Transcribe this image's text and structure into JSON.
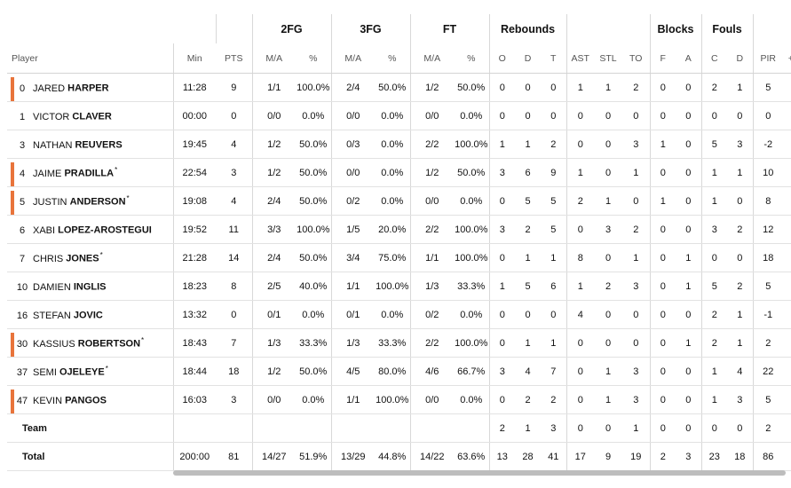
{
  "groups": {
    "fg2": "2FG",
    "fg3": "3FG",
    "ft": "FT",
    "reb": "Rebounds",
    "blk": "Blocks",
    "fouls": "Fouls"
  },
  "columns": {
    "player": "Player",
    "min": "Min",
    "pts": "PTS",
    "fg2_ma": "M/A",
    "fg2_pct": "%",
    "fg3_ma": "M/A",
    "fg3_pct": "%",
    "ft_ma": "M/A",
    "ft_pct": "%",
    "o": "O",
    "d": "D",
    "t": "T",
    "ast": "AST",
    "stl": "STL",
    "to": "TO",
    "bf": "F",
    "ba": "A",
    "fc": "C",
    "fd": "D",
    "pir": "PIR",
    "pm": "+/-"
  },
  "accent_color": "#e8743b",
  "players": [
    {
      "num": "0",
      "first": "JARED",
      "last": "HARPER",
      "star": "",
      "bar": true,
      "min": "11:28",
      "pts": "9",
      "fg2_ma": "1/1",
      "fg2_pct": "100.0%",
      "fg3_ma": "2/4",
      "fg3_pct": "50.0%",
      "ft_ma": "1/2",
      "ft_pct": "50.0%",
      "o": "0",
      "d": "0",
      "t": "0",
      "ast": "1",
      "stl": "1",
      "to": "2",
      "bf": "0",
      "ba": "0",
      "fc": "2",
      "fd": "1",
      "pir": "5"
    },
    {
      "num": "1",
      "first": "VICTOR",
      "last": "CLAVER",
      "star": "",
      "bar": false,
      "min": "00:00",
      "pts": "0",
      "fg2_ma": "0/0",
      "fg2_pct": "0.0%",
      "fg3_ma": "0/0",
      "fg3_pct": "0.0%",
      "ft_ma": "0/0",
      "ft_pct": "0.0%",
      "o": "0",
      "d": "0",
      "t": "0",
      "ast": "0",
      "stl": "0",
      "to": "0",
      "bf": "0",
      "ba": "0",
      "fc": "0",
      "fd": "0",
      "pir": "0"
    },
    {
      "num": "3",
      "first": "NATHAN",
      "last": "REUVERS",
      "star": "",
      "bar": false,
      "min": "19:45",
      "pts": "4",
      "fg2_ma": "1/2",
      "fg2_pct": "50.0%",
      "fg3_ma": "0/3",
      "fg3_pct": "0.0%",
      "ft_ma": "2/2",
      "ft_pct": "100.0%",
      "o": "1",
      "d": "1",
      "t": "2",
      "ast": "0",
      "stl": "0",
      "to": "3",
      "bf": "1",
      "ba": "0",
      "fc": "5",
      "fd": "3",
      "pir": "-2"
    },
    {
      "num": "4",
      "first": "JAIME",
      "last": "PRADILLA",
      "star": "*",
      "bar": true,
      "min": "22:54",
      "pts": "3",
      "fg2_ma": "1/2",
      "fg2_pct": "50.0%",
      "fg3_ma": "0/0",
      "fg3_pct": "0.0%",
      "ft_ma": "1/2",
      "ft_pct": "50.0%",
      "o": "3",
      "d": "6",
      "t": "9",
      "ast": "1",
      "stl": "0",
      "to": "1",
      "bf": "0",
      "ba": "0",
      "fc": "1",
      "fd": "1",
      "pir": "10"
    },
    {
      "num": "5",
      "first": "JUSTIN",
      "last": "ANDERSON",
      "star": "*",
      "bar": true,
      "min": "19:08",
      "pts": "4",
      "fg2_ma": "2/4",
      "fg2_pct": "50.0%",
      "fg3_ma": "0/2",
      "fg3_pct": "0.0%",
      "ft_ma": "0/0",
      "ft_pct": "0.0%",
      "o": "0",
      "d": "5",
      "t": "5",
      "ast": "2",
      "stl": "1",
      "to": "0",
      "bf": "1",
      "ba": "0",
      "fc": "1",
      "fd": "0",
      "pir": "8"
    },
    {
      "num": "6",
      "first": "XABI",
      "last": "LOPEZ-AROSTEGUI",
      "star": "",
      "bar": false,
      "min": "19:52",
      "pts": "11",
      "fg2_ma": "3/3",
      "fg2_pct": "100.0%",
      "fg3_ma": "1/5",
      "fg3_pct": "20.0%",
      "ft_ma": "2/2",
      "ft_pct": "100.0%",
      "o": "3",
      "d": "2",
      "t": "5",
      "ast": "0",
      "stl": "3",
      "to": "2",
      "bf": "0",
      "ba": "0",
      "fc": "3",
      "fd": "2",
      "pir": "12"
    },
    {
      "num": "7",
      "first": "CHRIS",
      "last": "JONES",
      "star": "*",
      "bar": false,
      "min": "21:28",
      "pts": "14",
      "fg2_ma": "2/4",
      "fg2_pct": "50.0%",
      "fg3_ma": "3/4",
      "fg3_pct": "75.0%",
      "ft_ma": "1/1",
      "ft_pct": "100.0%",
      "o": "0",
      "d": "1",
      "t": "1",
      "ast": "8",
      "stl": "0",
      "to": "1",
      "bf": "0",
      "ba": "1",
      "fc": "0",
      "fd": "0",
      "pir": "18"
    },
    {
      "num": "10",
      "first": "DAMIEN",
      "last": "INGLIS",
      "star": "",
      "bar": false,
      "min": "18:23",
      "pts": "8",
      "fg2_ma": "2/5",
      "fg2_pct": "40.0%",
      "fg3_ma": "1/1",
      "fg3_pct": "100.0%",
      "ft_ma": "1/3",
      "ft_pct": "33.3%",
      "o": "1",
      "d": "5",
      "t": "6",
      "ast": "1",
      "stl": "2",
      "to": "3",
      "bf": "0",
      "ba": "1",
      "fc": "5",
      "fd": "2",
      "pir": "5"
    },
    {
      "num": "16",
      "first": "STEFAN",
      "last": "JOVIC",
      "star": "",
      "bar": false,
      "min": "13:32",
      "pts": "0",
      "fg2_ma": "0/1",
      "fg2_pct": "0.0%",
      "fg3_ma": "0/1",
      "fg3_pct": "0.0%",
      "ft_ma": "0/2",
      "ft_pct": "0.0%",
      "o": "0",
      "d": "0",
      "t": "0",
      "ast": "4",
      "stl": "0",
      "to": "0",
      "bf": "0",
      "ba": "0",
      "fc": "2",
      "fd": "1",
      "pir": "-1"
    },
    {
      "num": "30",
      "first": "KASSIUS",
      "last": "ROBERTSON",
      "star": "*",
      "bar": true,
      "min": "18:43",
      "pts": "7",
      "fg2_ma": "1/3",
      "fg2_pct": "33.3%",
      "fg3_ma": "1/3",
      "fg3_pct": "33.3%",
      "ft_ma": "2/2",
      "ft_pct": "100.0%",
      "o": "0",
      "d": "1",
      "t": "1",
      "ast": "0",
      "stl": "0",
      "to": "0",
      "bf": "0",
      "ba": "1",
      "fc": "2",
      "fd": "1",
      "pir": "2"
    },
    {
      "num": "37",
      "first": "SEMI",
      "last": "OJELEYE",
      "star": "*",
      "bar": false,
      "min": "18:44",
      "pts": "18",
      "fg2_ma": "1/2",
      "fg2_pct": "50.0%",
      "fg3_ma": "4/5",
      "fg3_pct": "80.0%",
      "ft_ma": "4/6",
      "ft_pct": "66.7%",
      "o": "3",
      "d": "4",
      "t": "7",
      "ast": "0",
      "stl": "1",
      "to": "3",
      "bf": "0",
      "ba": "0",
      "fc": "1",
      "fd": "4",
      "pir": "22"
    },
    {
      "num": "47",
      "first": "KEVIN",
      "last": "PANGOS",
      "star": "",
      "bar": true,
      "min": "16:03",
      "pts": "3",
      "fg2_ma": "0/0",
      "fg2_pct": "0.0%",
      "fg3_ma": "1/1",
      "fg3_pct": "100.0%",
      "ft_ma": "0/0",
      "ft_pct": "0.0%",
      "o": "0",
      "d": "2",
      "t": "2",
      "ast": "0",
      "stl": "1",
      "to": "3",
      "bf": "0",
      "ba": "0",
      "fc": "1",
      "fd": "3",
      "pir": "5"
    }
  ],
  "team": {
    "label": "Team",
    "o": "2",
    "d": "1",
    "t": "3",
    "ast": "0",
    "stl": "0",
    "to": "1",
    "bf": "0",
    "ba": "0",
    "fc": "0",
    "fd": "0",
    "pir": "2"
  },
  "total": {
    "label": "Total",
    "min": "200:00",
    "pts": "81",
    "fg2_ma": "14/27",
    "fg2_pct": "51.9%",
    "fg3_ma": "13/29",
    "fg3_pct": "44.8%",
    "ft_ma": "14/22",
    "ft_pct": "63.6%",
    "o": "13",
    "d": "28",
    "t": "41",
    "ast": "17",
    "stl": "9",
    "to": "19",
    "bf": "2",
    "ba": "3",
    "fc": "23",
    "fd": "18",
    "pir": "86"
  }
}
